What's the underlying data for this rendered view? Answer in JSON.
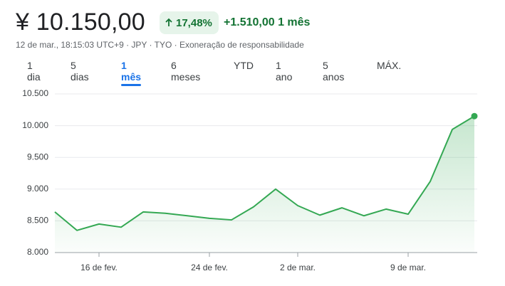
{
  "header": {
    "price": "¥ 10.150,00",
    "change_pct": "17,48%",
    "change_abs": "+1.510,00",
    "period": "1 mês",
    "info": "12 de mar., 18:15:03 UTC+9 · JPY · TYO · Exoneração de responsabilidade"
  },
  "tabs": [
    "1 dia",
    "5 dias",
    "1 mês",
    "6 meses",
    "YTD",
    "1 ano",
    "5 anos",
    "MÁX."
  ],
  "selected_tab": "1 mês",
  "chart_data": {
    "type": "area-line",
    "categories": [
      null,
      null,
      "16 de fev.",
      null,
      null,
      null,
      null,
      "24 de fev.",
      null,
      null,
      null,
      "2 de mar.",
      null,
      null,
      null,
      null,
      "9 de mar.",
      null,
      null,
      null
    ],
    "series": [
      {
        "color": "#34a853",
        "values": [
          8640,
          8350,
          8450,
          8400,
          8640,
          8620,
          8580,
          8540,
          8515,
          8720,
          9000,
          8740,
          8590,
          8705,
          8580,
          8685,
          8605,
          9120,
          9940,
          10150
        ]
      }
    ],
    "ylim": [
      8000,
      10500
    ],
    "yticks": [
      {
        "value": 8000,
        "label": "8.000"
      },
      {
        "value": 8500,
        "label": "8.500"
      },
      {
        "value": 9000,
        "label": "9.000"
      },
      {
        "value": 9500,
        "label": "9.500"
      },
      {
        "value": 10000,
        "label": "10.000"
      },
      {
        "value": 10500,
        "label": "10.500"
      }
    ],
    "grid": true
  }
}
